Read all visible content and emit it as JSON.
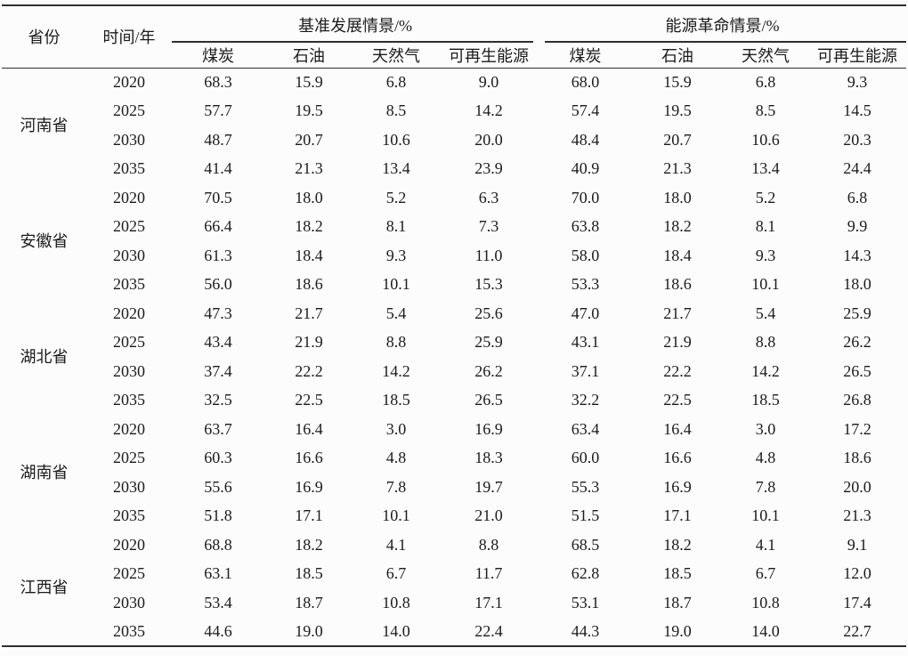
{
  "page": {
    "background": "#fcfcfc",
    "rule_color": "#2f2f2f",
    "text_color": "#1b1b1b"
  },
  "table": {
    "headers": {
      "province": "省份",
      "time": "时间/年",
      "baseline_group": "基准发展情景/%",
      "revolution_group": "能源革命情景/%",
      "sub": [
        "煤炭",
        "石油",
        "天然气",
        "可再生能源"
      ]
    },
    "provinces": [
      {
        "name": "河南省",
        "years": [
          {
            "year": "2020",
            "base": [
              "68.3",
              "15.9",
              "6.8",
              "9.0"
            ],
            "rev": [
              "68.0",
              "15.9",
              "6.8",
              "9.3"
            ]
          },
          {
            "year": "2025",
            "base": [
              "57.7",
              "19.5",
              "8.5",
              "14.2"
            ],
            "rev": [
              "57.4",
              "19.5",
              "8.5",
              "14.5"
            ]
          },
          {
            "year": "2030",
            "base": [
              "48.7",
              "20.7",
              "10.6",
              "20.0"
            ],
            "rev": [
              "48.4",
              "20.7",
              "10.6",
              "20.3"
            ]
          },
          {
            "year": "2035",
            "base": [
              "41.4",
              "21.3",
              "13.4",
              "23.9"
            ],
            "rev": [
              "40.9",
              "21.3",
              "13.4",
              "24.4"
            ]
          }
        ]
      },
      {
        "name": "安徽省",
        "years": [
          {
            "year": "2020",
            "base": [
              "70.5",
              "18.0",
              "5.2",
              "6.3"
            ],
            "rev": [
              "70.0",
              "18.0",
              "5.2",
              "6.8"
            ]
          },
          {
            "year": "2025",
            "base": [
              "66.4",
              "18.2",
              "8.1",
              "7.3"
            ],
            "rev": [
              "63.8",
              "18.2",
              "8.1",
              "9.9"
            ]
          },
          {
            "year": "2030",
            "base": [
              "61.3",
              "18.4",
              "9.3",
              "11.0"
            ],
            "rev": [
              "58.0",
              "18.4",
              "9.3",
              "14.3"
            ]
          },
          {
            "year": "2035",
            "base": [
              "56.0",
              "18.6",
              "10.1",
              "15.3"
            ],
            "rev": [
              "53.3",
              "18.6",
              "10.1",
              "18.0"
            ]
          }
        ]
      },
      {
        "name": "湖北省",
        "years": [
          {
            "year": "2020",
            "base": [
              "47.3",
              "21.7",
              "5.4",
              "25.6"
            ],
            "rev": [
              "47.0",
              "21.7",
              "5.4",
              "25.9"
            ]
          },
          {
            "year": "2025",
            "base": [
              "43.4",
              "21.9",
              "8.8",
              "25.9"
            ],
            "rev": [
              "43.1",
              "21.9",
              "8.8",
              "26.2"
            ]
          },
          {
            "year": "2030",
            "base": [
              "37.4",
              "22.2",
              "14.2",
              "26.2"
            ],
            "rev": [
              "37.1",
              "22.2",
              "14.2",
              "26.5"
            ]
          },
          {
            "year": "2035",
            "base": [
              "32.5",
              "22.5",
              "18.5",
              "26.5"
            ],
            "rev": [
              "32.2",
              "22.5",
              "18.5",
              "26.8"
            ]
          }
        ]
      },
      {
        "name": "湖南省",
        "years": [
          {
            "year": "2020",
            "base": [
              "63.7",
              "16.4",
              "3.0",
              "16.9"
            ],
            "rev": [
              "63.4",
              "16.4",
              "3.0",
              "17.2"
            ]
          },
          {
            "year": "2025",
            "base": [
              "60.3",
              "16.6",
              "4.8",
              "18.3"
            ],
            "rev": [
              "60.0",
              "16.6",
              "4.8",
              "18.6"
            ]
          },
          {
            "year": "2030",
            "base": [
              "55.6",
              "16.9",
              "7.8",
              "19.7"
            ],
            "rev": [
              "55.3",
              "16.9",
              "7.8",
              "20.0"
            ]
          },
          {
            "year": "2035",
            "base": [
              "51.8",
              "17.1",
              "10.1",
              "21.0"
            ],
            "rev": [
              "51.5",
              "17.1",
              "10.1",
              "21.3"
            ]
          }
        ]
      },
      {
        "name": "江西省",
        "years": [
          {
            "year": "2020",
            "base": [
              "68.8",
              "18.2",
              "4.1",
              "8.8"
            ],
            "rev": [
              "68.5",
              "18.2",
              "4.1",
              "9.1"
            ]
          },
          {
            "year": "2025",
            "base": [
              "63.1",
              "18.5",
              "6.7",
              "11.7"
            ],
            "rev": [
              "62.8",
              "18.5",
              "6.7",
              "12.0"
            ]
          },
          {
            "year": "2030",
            "base": [
              "53.4",
              "18.7",
              "10.8",
              "17.1"
            ],
            "rev": [
              "53.1",
              "18.7",
              "10.8",
              "17.4"
            ]
          },
          {
            "year": "2035",
            "base": [
              "44.6",
              "19.0",
              "14.0",
              "22.4"
            ],
            "rev": [
              "44.3",
              "19.0",
              "14.0",
              "22.7"
            ]
          }
        ]
      }
    ]
  }
}
